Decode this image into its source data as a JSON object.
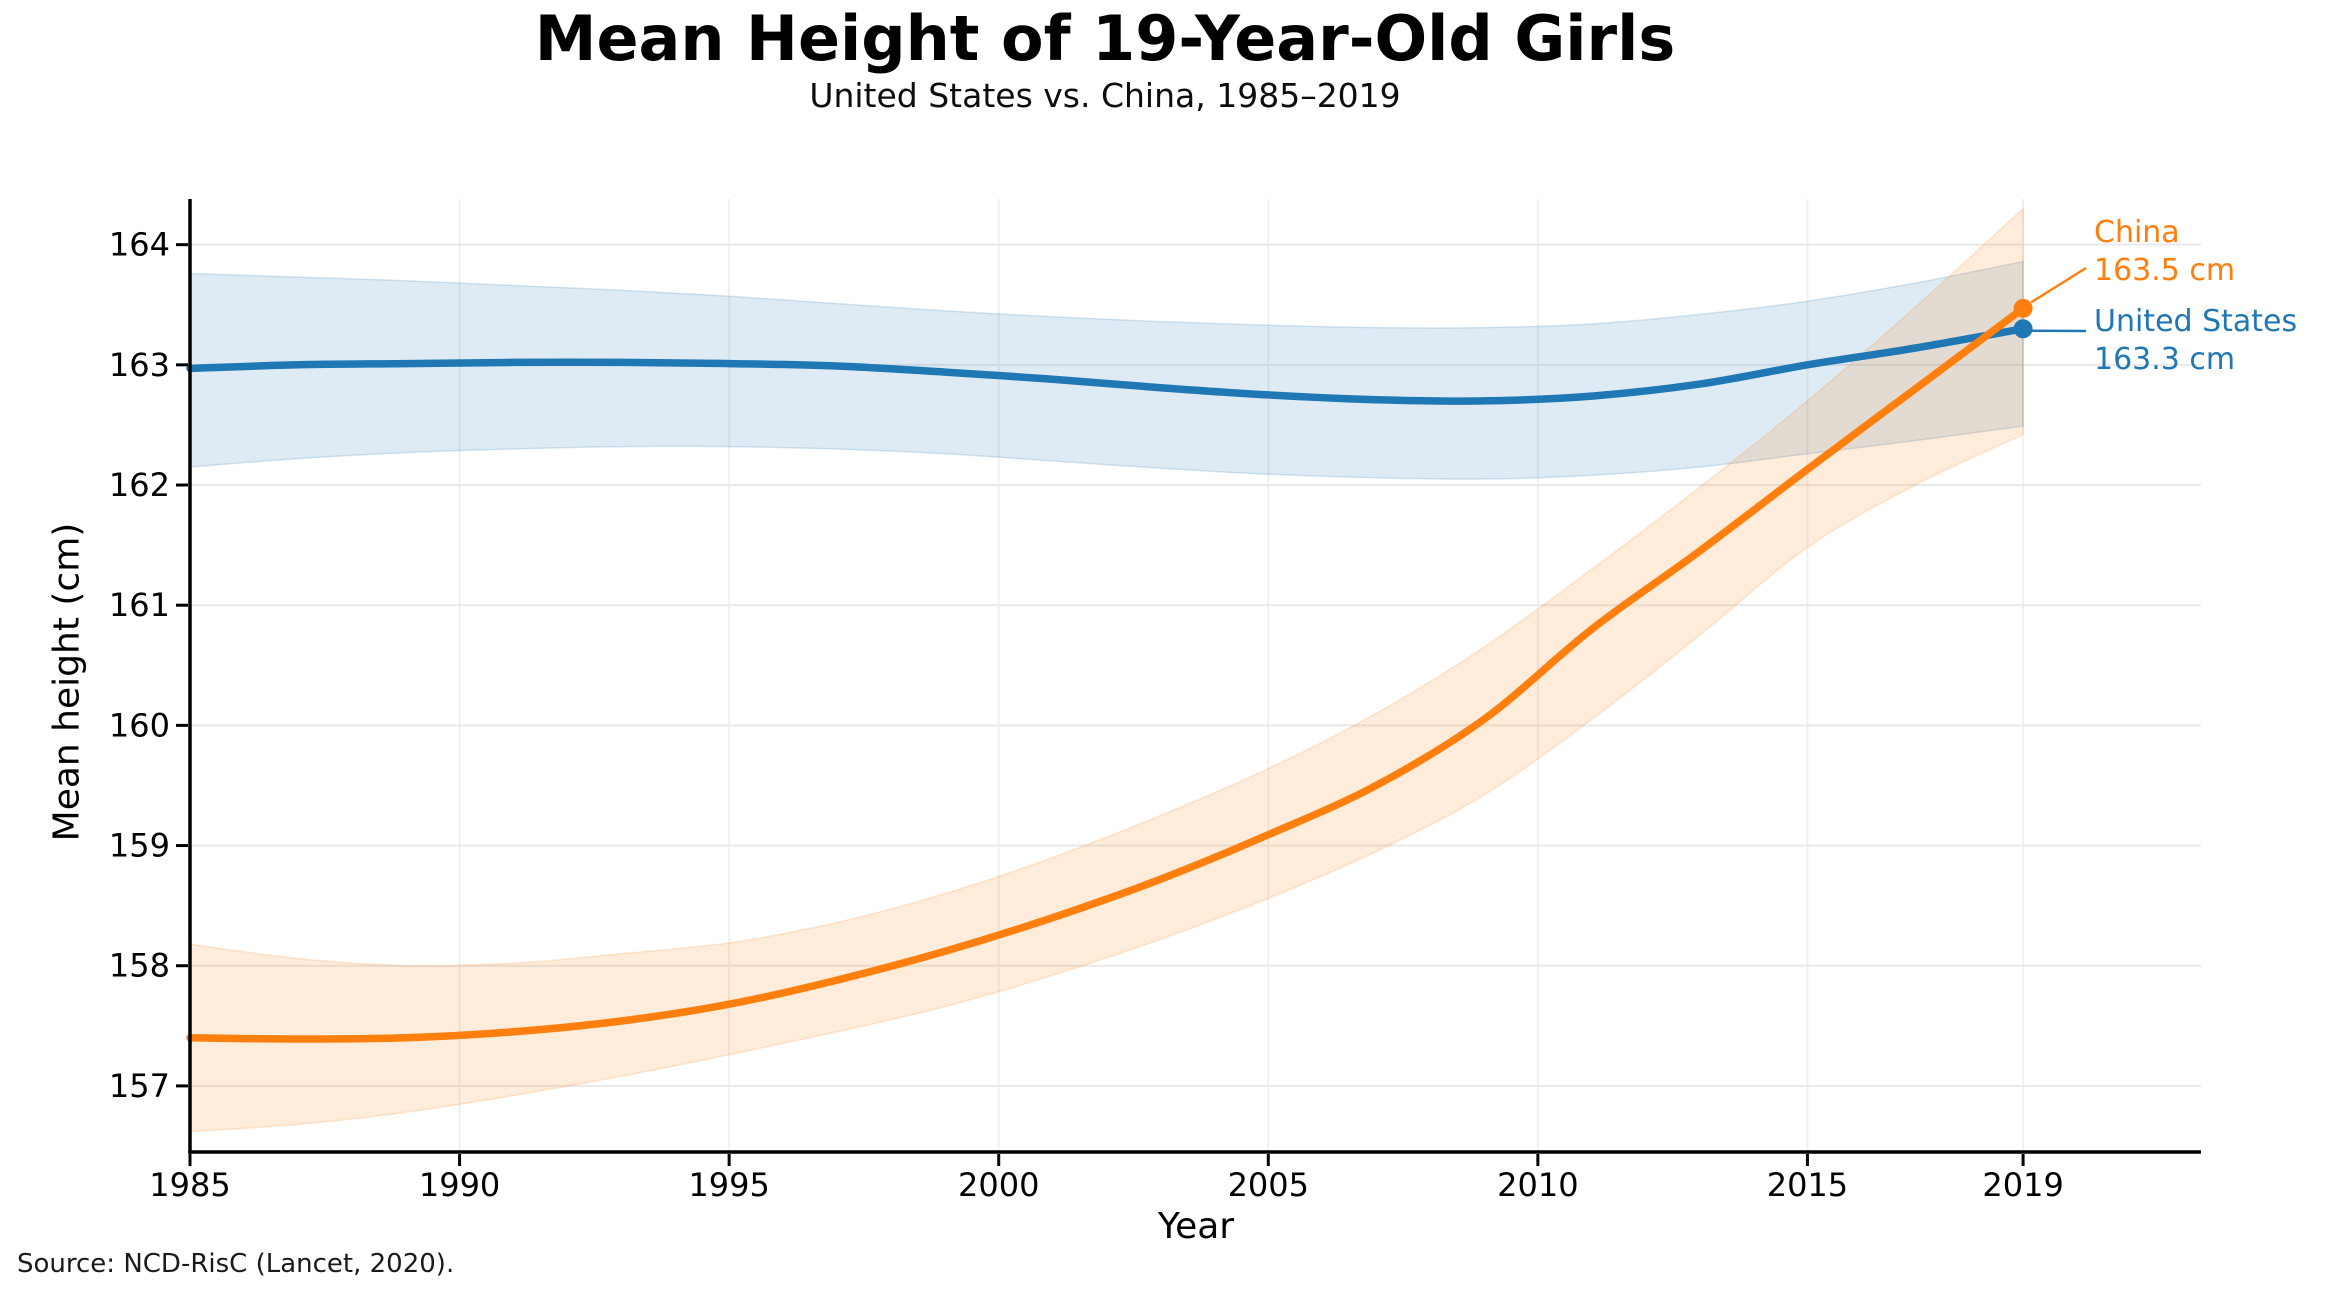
{
  "chart_data": {
    "type": "line",
    "title": "Mean Height of 19-Year-Old Girls",
    "subtitle": "United States vs. China, 1985–2019",
    "xlabel": "Year",
    "ylabel": "Mean height (cm)",
    "source": "Source: NCD-RisC (Lancet, 2020).",
    "xlim": [
      1985,
      2022.3
    ],
    "ylim": [
      156.45,
      164.38
    ],
    "x_ticks": [
      1985,
      1990,
      1995,
      2000,
      2005,
      2010,
      2015,
      2019
    ],
    "y_ticks": [
      157,
      158,
      159,
      160,
      161,
      162,
      163,
      164
    ],
    "grid": true,
    "legend_position": "end-of-line-labels",
    "colors": {
      "grid_horizontal": "#e9e9e9",
      "grid_vertical": "#f0f0f0",
      "axis": "#000000",
      "us_blue": "#1f77b4",
      "china_orange": "#ff7f0e"
    },
    "x_sample_years": [
      1985,
      1987,
      1989,
      1991,
      1993,
      1995,
      1997,
      1999,
      2001,
      2003,
      2005,
      2007,
      2009,
      2011,
      2013,
      2015,
      2017,
      2019
    ],
    "series": [
      {
        "name": "United States",
        "color": "#1f77b4",
        "x": [
          1985,
          1987,
          1989,
          1991,
          1993,
          1995,
          1997,
          1999,
          2001,
          2003,
          2005,
          2007,
          2009,
          2011,
          2013,
          2015,
          2017,
          2019
        ],
        "y": [
          162.97,
          163.0,
          163.01,
          163.02,
          163.02,
          163.01,
          162.99,
          162.94,
          162.88,
          162.81,
          162.75,
          162.71,
          162.7,
          162.74,
          162.84,
          163.0,
          163.14,
          163.3
        ],
        "band_upper": [
          163.76,
          163.73,
          163.7,
          163.66,
          163.62,
          163.57,
          163.51,
          163.45,
          163.4,
          163.36,
          163.33,
          163.31,
          163.31,
          163.34,
          163.42,
          163.53,
          163.68,
          163.86
        ],
        "band_lower": [
          162.15,
          162.22,
          162.27,
          162.3,
          162.32,
          162.32,
          162.3,
          162.26,
          162.2,
          162.14,
          162.09,
          162.06,
          162.05,
          162.08,
          162.15,
          162.26,
          162.37,
          162.49
        ],
        "end_label": {
          "name": "United States",
          "value_text": "163.3 cm"
        },
        "end_value": 163.3
      },
      {
        "name": "China",
        "color": "#ff7f0e",
        "x": [
          1985,
          1987,
          1989,
          1991,
          1993,
          1995,
          1997,
          1999,
          2001,
          2003,
          2005,
          2007,
          2009,
          2011,
          2013,
          2015,
          2017,
          2019
        ],
        "y": [
          157.4,
          157.39,
          157.4,
          157.45,
          157.54,
          157.68,
          157.88,
          158.12,
          158.4,
          158.72,
          159.09,
          159.5,
          160.05,
          160.8,
          161.45,
          162.13,
          162.8,
          163.47
        ],
        "band_upper": [
          158.18,
          158.06,
          158.0,
          158.02,
          158.1,
          158.19,
          158.36,
          158.6,
          158.9,
          159.25,
          159.64,
          160.1,
          160.65,
          161.3,
          161.98,
          162.7,
          163.48,
          164.3
        ],
        "band_lower": [
          156.62,
          156.68,
          156.78,
          156.92,
          157.08,
          157.26,
          157.45,
          157.66,
          157.92,
          158.22,
          158.56,
          158.95,
          159.42,
          160.05,
          160.75,
          161.48,
          162.0,
          162.42
        ],
        "end_label": {
          "name": "China",
          "value_text": "163.5 cm"
        },
        "end_value": 163.5
      }
    ]
  }
}
